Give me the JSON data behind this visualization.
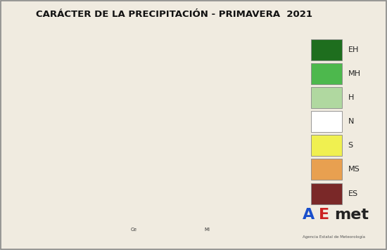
{
  "title": "CARÁCTER DE LA PRECIPITACIÓN - PRIMAVERA  2021",
  "title_fontsize": 9.5,
  "background_color": "#f0ebe0",
  "sea_color": "#aed6e8",
  "portugal_color": "#b8b8b8",
  "france_color": "#b8b8b8",
  "andorra_color": "#b8b8b8",
  "legend_labels": [
    "EH",
    "MH",
    "H",
    "N",
    "S",
    "MS",
    "ES"
  ],
  "legend_colors": [
    "#1e6e1e",
    "#4db84d",
    "#b0d8a0",
    "#ffffff",
    "#f0f050",
    "#e8a050",
    "#7a2828"
  ],
  "figure_width": 5.5,
  "figure_height": 3.56,
  "dpi": 100,
  "aemet_A_color": "#1a4fcc",
  "aemet_E_color": "#cc2222",
  "aemet_met_color": "#222222",
  "aemet_sub_color": "#555555",
  "aemet_text": "Agencia Estatal de Meteorología",
  "note_ce": "Ce",
  "note_ml": "Ml",
  "map_extent_lon_min": -10.0,
  "map_extent_lon_max": 5.5,
  "map_extent_lat_min": 34.5,
  "map_extent_lat_max": 44.5
}
